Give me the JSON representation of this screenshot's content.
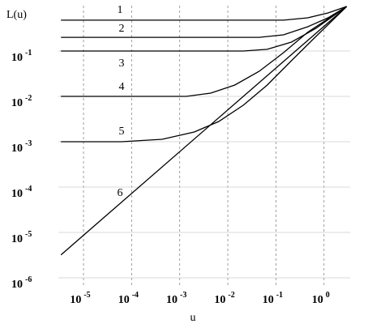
{
  "chart_data": {
    "type": "line",
    "ylabel": "L(u)",
    "xlabel": "u",
    "log_x": true,
    "log_y": true,
    "grid": true,
    "xlim": [
      3e-06,
      3.5
    ],
    "ylim": [
      1e-06,
      1
    ],
    "xticks": [
      {
        "value": 1e-05,
        "label": "10",
        "exponent": "-5"
      },
      {
        "value": 0.0001,
        "label": "10",
        "exponent": "-4"
      },
      {
        "value": 0.001,
        "label": "10",
        "exponent": "-3"
      },
      {
        "value": 0.01,
        "label": "10",
        "exponent": "-2"
      },
      {
        "value": 0.1,
        "label": "10",
        "exponent": "-1"
      },
      {
        "value": 1,
        "label": "10",
        "exponent": "0"
      }
    ],
    "yticks": [
      {
        "value": 0.1,
        "label": "10",
        "exponent": "-1"
      },
      {
        "value": 0.01,
        "label": "10",
        "exponent": "-2"
      },
      {
        "value": 0.001,
        "label": "10",
        "exponent": "-3"
      },
      {
        "value": 0.0001,
        "label": "10",
        "exponent": "-4"
      },
      {
        "value": 1e-05,
        "label": "10",
        "exponent": "-5"
      },
      {
        "value": 1e-06,
        "label": "10",
        "exponent": "-6"
      }
    ],
    "series": [
      {
        "name": "1",
        "color": "#000000",
        "x": [
          3.4e-06,
          0.144,
          0.46,
          1.21,
          2.96
        ],
        "values": [
          0.48,
          0.48,
          0.54,
          0.69,
          0.96
        ]
      },
      {
        "name": "2",
        "color": "#000000",
        "x": [
          3.4e-06,
          0.045,
          0.144,
          0.46,
          1.21,
          2.96
        ],
        "values": [
          0.2,
          0.2,
          0.228,
          0.343,
          0.54,
          0.96
        ]
      },
      {
        "name": "3",
        "color": "#000000",
        "x": [
          3.4e-06,
          0.021,
          0.066,
          0.21,
          0.68,
          2.96
        ],
        "values": [
          0.1,
          0.1,
          0.109,
          0.157,
          0.316,
          0.96
        ]
      },
      {
        "name": "4",
        "color": "#000000",
        "x": [
          3.4e-06,
          0.00137,
          0.0044,
          0.014,
          0.045,
          0.144,
          0.46,
          2.96
        ],
        "values": [
          0.01,
          0.01,
          0.0118,
          0.0178,
          0.0358,
          0.092,
          0.26,
          0.96
        ]
      },
      {
        "name": "5",
        "color": "#000000",
        "x": [
          3.4e-06,
          6.2e-05,
          0.00043,
          0.002,
          0.0065,
          0.021,
          0.066,
          0.21,
          0.68,
          2.96
        ],
        "values": [
          0.001,
          0.001,
          0.00113,
          0.00164,
          0.0028,
          0.0064,
          0.0178,
          0.061,
          0.21,
          0.96
        ]
      },
      {
        "name": "6",
        "color": "#000000",
        "x": [
          3.4e-06,
          2.95
        ],
        "values": [
          3.2e-06,
          0.95
        ]
      }
    ]
  }
}
